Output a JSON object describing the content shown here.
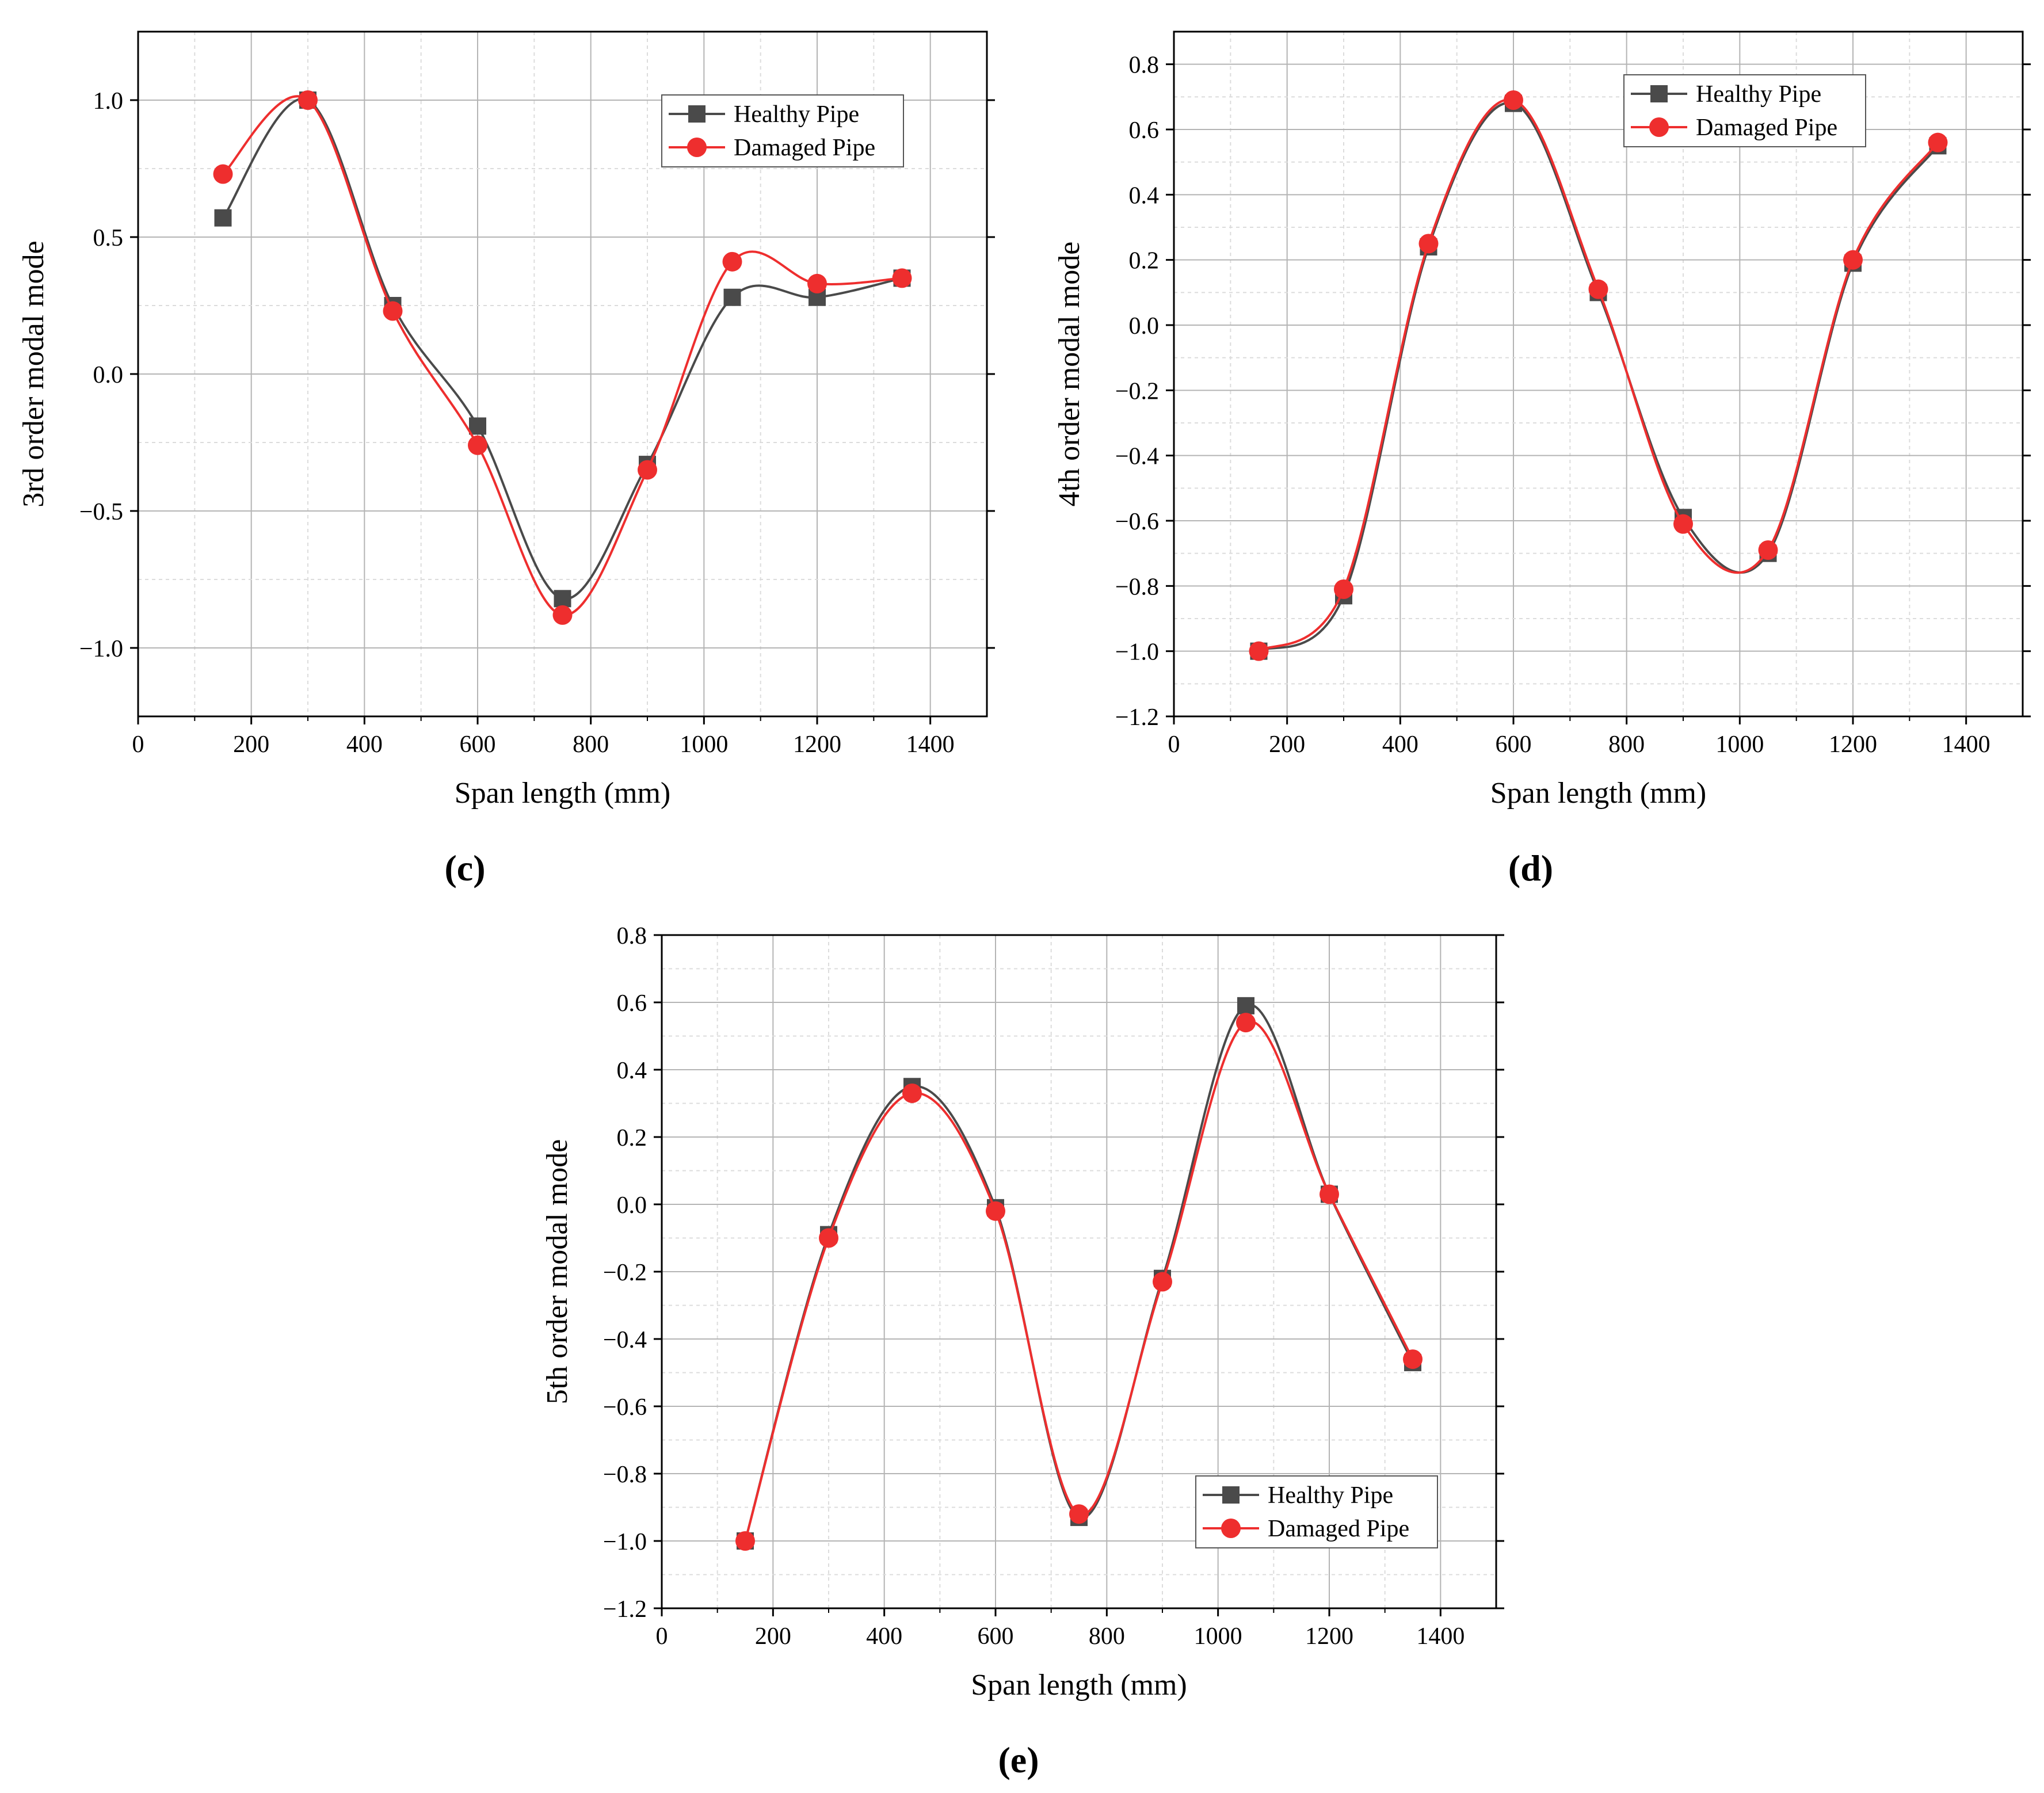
{
  "figure": {
    "panels": [
      "(c)",
      "(d)",
      "(e)"
    ]
  },
  "colors": {
    "healthy": "#4a4a4a",
    "damaged": "#ee2e2e",
    "grid_major": "#b4b4b4",
    "grid_minor": "#dcdcdc"
  },
  "chart_data": [
    {
      "type": "line",
      "panel_label": "(c)",
      "title": "",
      "xlabel": "Span length (mm)",
      "ylabel": "3rd order modal mode",
      "xlim": [
        0,
        1500
      ],
      "ylim": [
        -1.25,
        1.25
      ],
      "xticks": [
        0,
        200,
        400,
        600,
        800,
        1000,
        1200,
        1400
      ],
      "yticks": [
        -1.0,
        -0.5,
        0.0,
        0.5,
        1.0
      ],
      "ytick_labels": [
        "−1.0",
        "−0.5",
        "0.0",
        "0.5",
        "1.0"
      ],
      "grid": true,
      "legend_position": "top-right",
      "x": [
        150,
        300,
        450,
        600,
        750,
        900,
        1050,
        1200,
        1350
      ],
      "series": [
        {
          "name": "Healthy Pipe",
          "marker": "square",
          "values": [
            0.57,
            1.0,
            0.25,
            -0.19,
            -0.82,
            -0.33,
            0.28,
            0.28,
            0.35
          ]
        },
        {
          "name": "Damaged Pipe",
          "marker": "circle",
          "values": [
            0.73,
            1.0,
            0.23,
            -0.26,
            -0.88,
            -0.35,
            0.41,
            0.33,
            0.35
          ]
        }
      ]
    },
    {
      "type": "line",
      "panel_label": "(d)",
      "title": "",
      "xlabel": "Span length (mm)",
      "ylabel": "4th order modal mode",
      "xlim": [
        0,
        1500
      ],
      "ylim": [
        -1.2,
        0.9
      ],
      "xticks": [
        0,
        200,
        400,
        600,
        800,
        1000,
        1200,
        1400
      ],
      "yticks": [
        -1.2,
        -1.0,
        -0.8,
        -0.6,
        -0.4,
        -0.2,
        0.0,
        0.2,
        0.4,
        0.6,
        0.8
      ],
      "ytick_labels": [
        "−1.2",
        "−1.0",
        "−0.8",
        "−0.6",
        "−0.4",
        "−0.2",
        "0.0",
        "0.2",
        "0.4",
        "0.6",
        "0.8"
      ],
      "grid": true,
      "legend_position": "top-right",
      "x": [
        150,
        300,
        450,
        600,
        750,
        900,
        1050,
        1200,
        1350
      ],
      "series": [
        {
          "name": "Healthy Pipe",
          "marker": "square",
          "values": [
            -1.0,
            -0.83,
            0.24,
            0.68,
            0.1,
            -0.59,
            -0.7,
            0.19,
            0.55
          ]
        },
        {
          "name": "Damaged Pipe",
          "marker": "circle",
          "values": [
            -1.0,
            -0.81,
            0.25,
            0.69,
            0.11,
            -0.61,
            -0.69,
            0.2,
            0.56
          ]
        }
      ]
    },
    {
      "type": "line",
      "panel_label": "(e)",
      "title": "",
      "xlabel": "Span length (mm)",
      "ylabel": "5th order modal mode",
      "xlim": [
        0,
        1500
      ],
      "ylim": [
        -1.2,
        0.8
      ],
      "xticks": [
        0,
        200,
        400,
        600,
        800,
        1000,
        1200,
        1400
      ],
      "yticks": [
        -1.2,
        -1.0,
        -0.8,
        -0.6,
        -0.4,
        -0.2,
        0.0,
        0.2,
        0.4,
        0.6,
        0.8
      ],
      "ytick_labels": [
        "−1.2",
        "−1.0",
        "−0.8",
        "−0.6",
        "−0.4",
        "−0.2",
        "0.0",
        "0.2",
        "0.4",
        "0.6",
        "0.8"
      ],
      "grid": true,
      "legend_position": "bottom-right",
      "x": [
        150,
        300,
        450,
        600,
        750,
        900,
        1050,
        1200,
        1350
      ],
      "series": [
        {
          "name": "Healthy Pipe",
          "marker": "square",
          "values": [
            -1.0,
            -0.09,
            0.35,
            -0.01,
            -0.93,
            -0.22,
            0.59,
            0.03,
            -0.47
          ]
        },
        {
          "name": "Damaged Pipe",
          "marker": "circle",
          "values": [
            -1.0,
            -0.1,
            0.33,
            -0.02,
            -0.92,
            -0.23,
            0.54,
            0.03,
            -0.46
          ]
        }
      ]
    }
  ]
}
